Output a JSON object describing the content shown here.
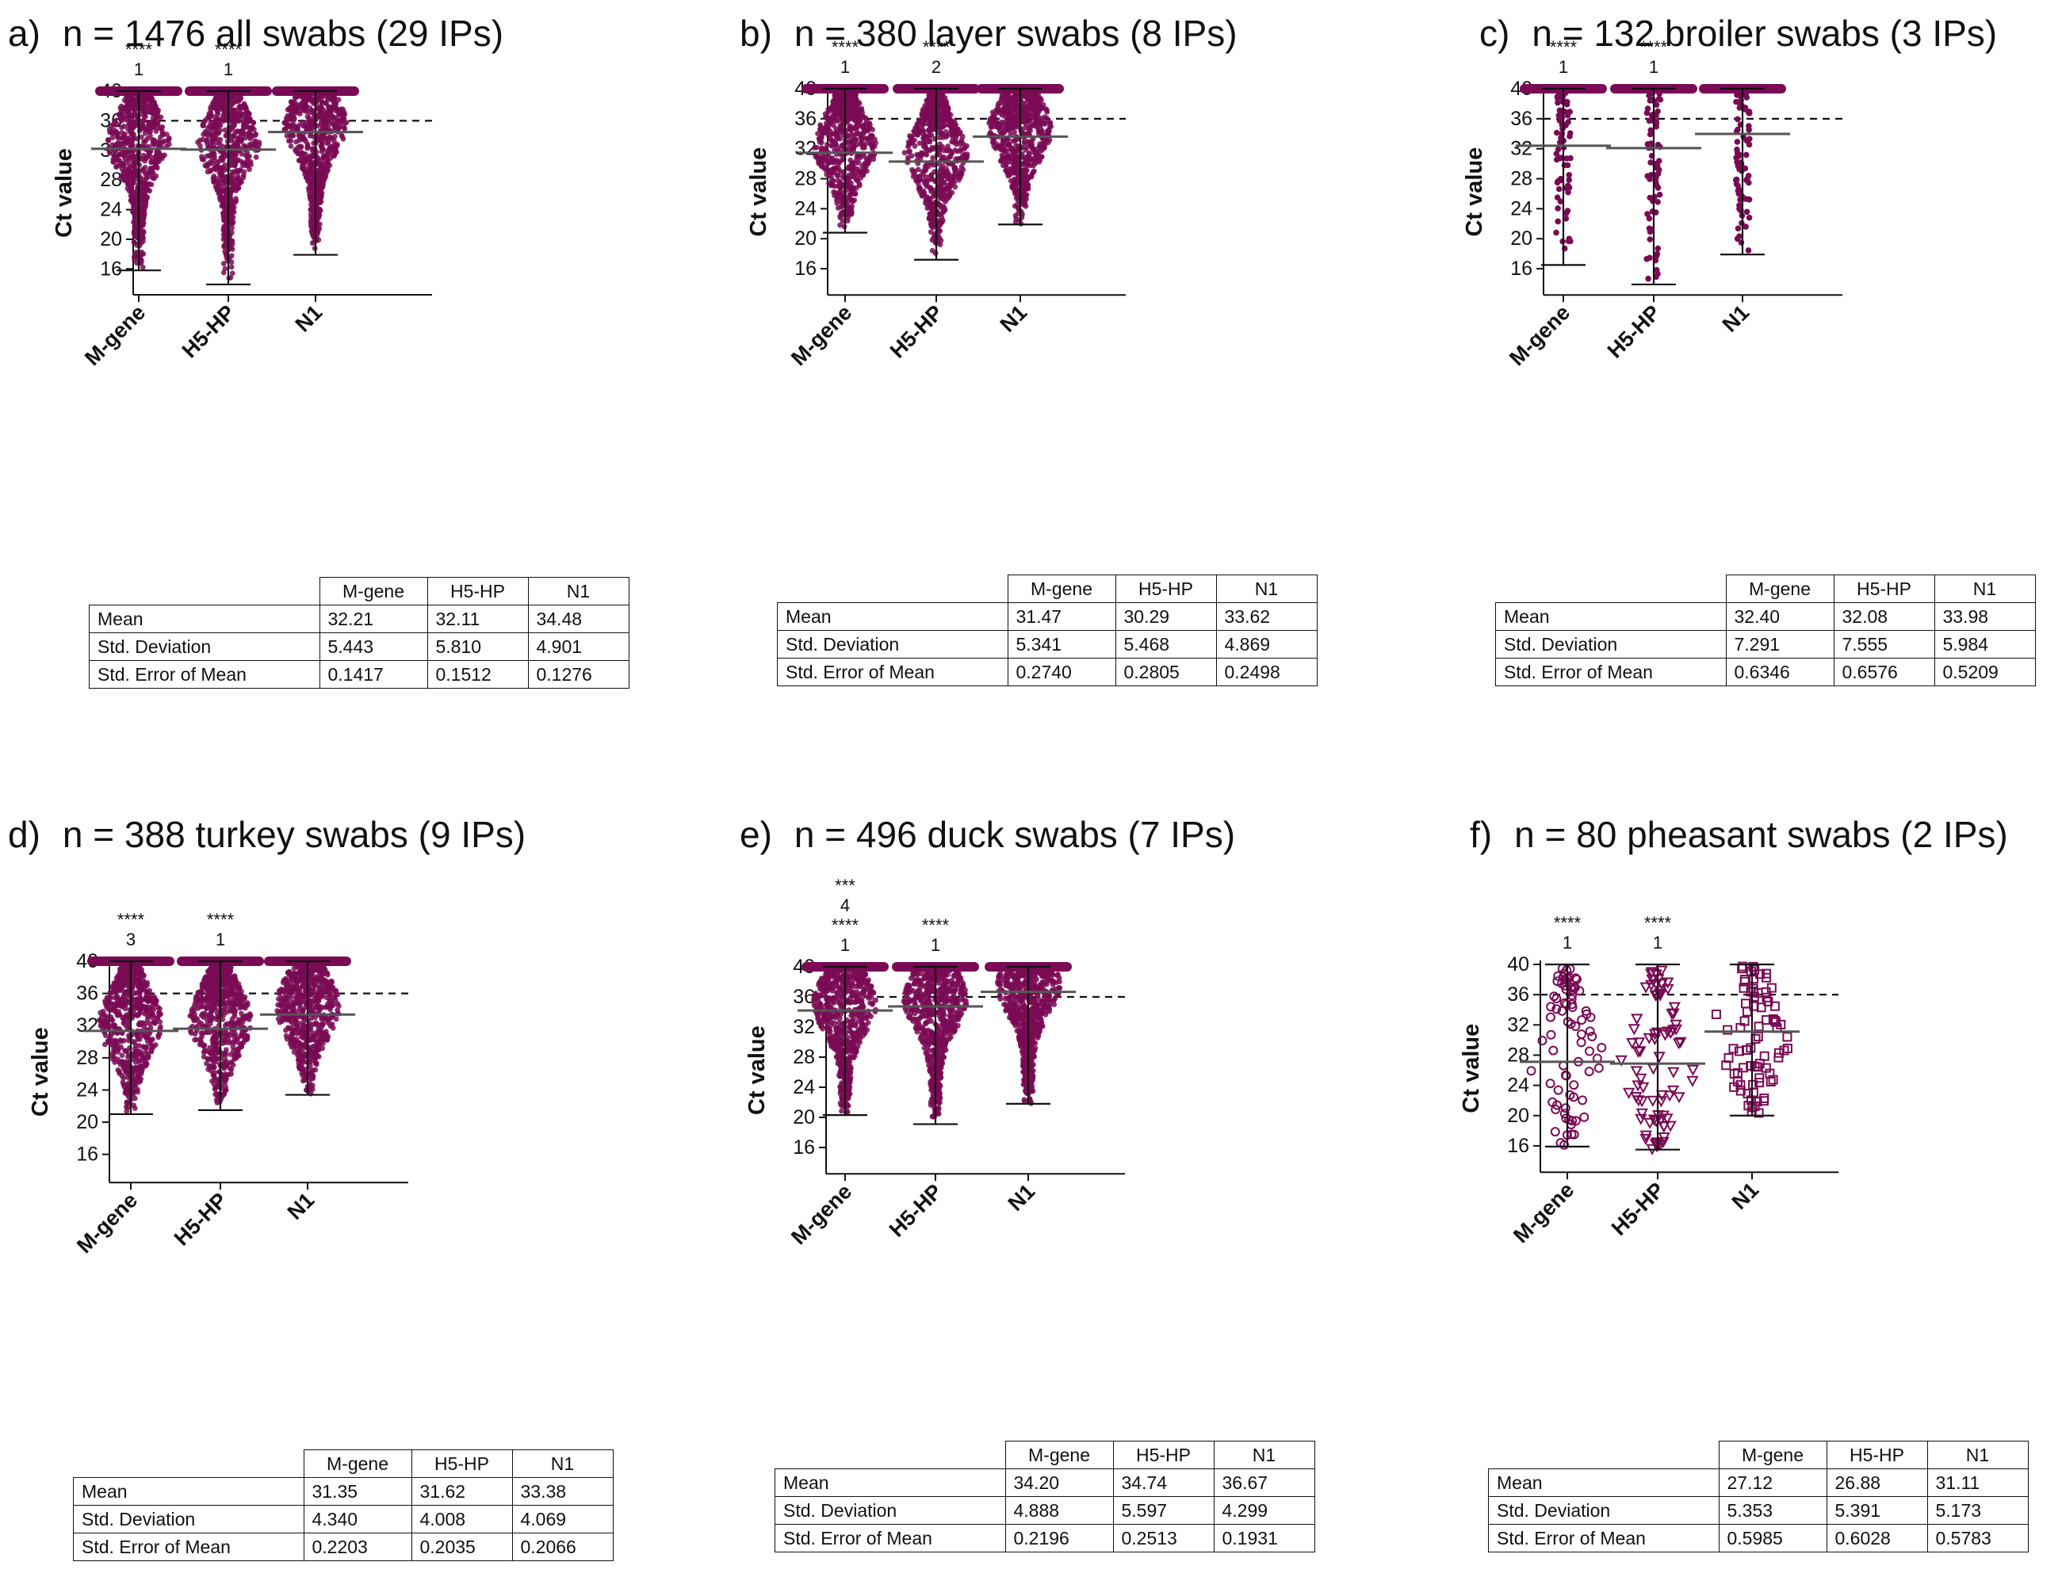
{
  "theme": {
    "point_color": "#7a0a55",
    "line_color": "#111111",
    "mean_color": "#555555"
  },
  "chart_data": [
    {
      "type": "scatter",
      "label": "a)",
      "title": "n = 1476 all swabs (29 IPs)",
      "ylabel": "Ct value",
      "categories": [
        "M-gene",
        "H5-HP",
        "N1"
      ],
      "ylim": [
        12,
        41
      ],
      "yticks": [
        16,
        20,
        24,
        28,
        32,
        36,
        40
      ],
      "threshold": 36,
      "marker": "dense",
      "series": [
        {
          "category": "M-gene",
          "mean": 32.21,
          "min": 15.8,
          "max": 40,
          "significance": [
            "****",
            "1"
          ]
        },
        {
          "category": "H5-HP",
          "mean": 32.11,
          "min": 13.9,
          "max": 40,
          "significance": [
            "****",
            "1"
          ]
        },
        {
          "category": "N1",
          "mean": 34.48,
          "min": 17.9,
          "max": 40,
          "significance": []
        }
      ],
      "table": {
        "columns": [
          "M-gene",
          "H5-HP",
          "N1"
        ],
        "rows": [
          {
            "label": "Mean",
            "values": [
              "32.21",
              "32.11",
              "34.48"
            ]
          },
          {
            "label": "Std. Deviation",
            "values": [
              "5.443",
              "5.810",
              "4.901"
            ]
          },
          {
            "label": "Std. Error of Mean",
            "values": [
              "0.1417",
              "0.1512",
              "0.1276"
            ]
          }
        ]
      }
    },
    {
      "type": "scatter",
      "label": "b)",
      "title": "n = 380 layer swabs (8 IPs)",
      "ylabel": "Ct value",
      "categories": [
        "M-gene",
        "H5-HP",
        "N1"
      ],
      "ylim": [
        12,
        41
      ],
      "yticks": [
        16,
        20,
        24,
        28,
        32,
        36,
        40
      ],
      "threshold": 36,
      "marker": "dense",
      "series": [
        {
          "category": "M-gene",
          "mean": 31.47,
          "min": 20.8,
          "max": 40,
          "significance": [
            "****",
            "1"
          ]
        },
        {
          "category": "H5-HP",
          "mean": 30.29,
          "min": 17.2,
          "max": 40,
          "significance": [
            "****",
            "2"
          ]
        },
        {
          "category": "N1",
          "mean": 33.62,
          "min": 21.9,
          "max": 40,
          "significance": []
        }
      ],
      "table": {
        "columns": [
          "M-gene",
          "H5-HP",
          "N1"
        ],
        "rows": [
          {
            "label": "Mean",
            "values": [
              "31.47",
              "30.29",
              "33.62"
            ]
          },
          {
            "label": "Std. Deviation",
            "values": [
              "5.341",
              "5.468",
              "4.869"
            ]
          },
          {
            "label": "Std. Error of Mean",
            "values": [
              "0.2740",
              "0.2805",
              "0.2498"
            ]
          }
        ]
      }
    },
    {
      "type": "scatter",
      "label": "c)",
      "title": "n = 132 broiler swabs (3 IPs)",
      "ylabel": "Ct value",
      "categories": [
        "M-gene",
        "H5-HP",
        "N1"
      ],
      "ylim": [
        12,
        41
      ],
      "yticks": [
        16,
        20,
        24,
        28,
        32,
        36,
        40
      ],
      "threshold": 36,
      "marker": "sparse",
      "series": [
        {
          "category": "M-gene",
          "mean": 32.4,
          "min": 16.5,
          "max": 40,
          "significance": [
            "****",
            "1"
          ]
        },
        {
          "category": "H5-HP",
          "mean": 32.08,
          "min": 13.9,
          "max": 40,
          "significance": [
            "****",
            "1"
          ]
        },
        {
          "category": "N1",
          "mean": 33.98,
          "min": 17.9,
          "max": 40,
          "significance": []
        }
      ],
      "table": {
        "columns": [
          "M-gene",
          "H5-HP",
          "N1"
        ],
        "rows": [
          {
            "label": "Mean",
            "values": [
              "32.40",
              "32.08",
              "33.98"
            ]
          },
          {
            "label": "Std. Deviation",
            "values": [
              "7.291",
              "7.555",
              "5.984"
            ]
          },
          {
            "label": "Std. Error of Mean",
            "values": [
              "0.6346",
              "0.6576",
              "0.5209"
            ]
          }
        ]
      }
    },
    {
      "type": "scatter",
      "label": "d)",
      "title": "n = 388 turkey swabs (9 IPs)",
      "ylabel": "Ct value",
      "categories": [
        "M-gene",
        "H5-HP",
        "N1"
      ],
      "ylim": [
        12,
        41
      ],
      "yticks": [
        16,
        20,
        24,
        28,
        32,
        36,
        40
      ],
      "threshold": 36,
      "marker": "dense",
      "series": [
        {
          "category": "M-gene",
          "mean": 31.35,
          "min": 21.0,
          "max": 40,
          "significance": [
            "****",
            "3"
          ]
        },
        {
          "category": "H5-HP",
          "mean": 31.62,
          "min": 21.5,
          "max": 40,
          "significance": [
            "****",
            "1"
          ]
        },
        {
          "category": "N1",
          "mean": 33.38,
          "min": 23.4,
          "max": 40,
          "significance": []
        }
      ],
      "table": {
        "columns": [
          "M-gene",
          "H5-HP",
          "N1"
        ],
        "rows": [
          {
            "label": "Mean",
            "values": [
              "31.35",
              "31.62",
              "33.38"
            ]
          },
          {
            "label": "Std. Deviation",
            "values": [
              "4.340",
              "4.008",
              "4.069"
            ]
          },
          {
            "label": "Std. Error of Mean",
            "values": [
              "0.2203",
              "0.2035",
              "0.2066"
            ]
          }
        ]
      }
    },
    {
      "type": "scatter",
      "label": "e)",
      "title": "n = 496 duck swabs (7 IPs)",
      "ylabel": "Ct value",
      "categories": [
        "M-gene",
        "H5-HP",
        "N1"
      ],
      "ylim": [
        12,
        41
      ],
      "yticks": [
        16,
        20,
        24,
        28,
        32,
        36,
        40
      ],
      "threshold": 36,
      "marker": "dense",
      "series": [
        {
          "category": "M-gene",
          "mean": 34.2,
          "min": 20.3,
          "max": 40,
          "significance": [
            "***",
            "4",
            "****",
            "1"
          ]
        },
        {
          "category": "H5-HP",
          "mean": 34.74,
          "min": 19.1,
          "max": 40,
          "significance": [
            "****",
            "1"
          ]
        },
        {
          "category": "N1",
          "mean": 36.67,
          "min": 21.8,
          "max": 40,
          "significance": []
        }
      ],
      "table": {
        "columns": [
          "M-gene",
          "H5-HP",
          "N1"
        ],
        "rows": [
          {
            "label": "Mean",
            "values": [
              "34.20",
              "34.74",
              "36.67"
            ]
          },
          {
            "label": "Std. Deviation",
            "values": [
              "4.888",
              "5.597",
              "4.299"
            ]
          },
          {
            "label": "Std. Error of Mean",
            "values": [
              "0.2196",
              "0.2513",
              "0.1931"
            ]
          }
        ]
      }
    },
    {
      "type": "scatter",
      "label": "f)",
      "title": "n = 80 pheasant swabs (2 IPs)",
      "ylabel": "Ct value",
      "categories": [
        "M-gene",
        "H5-HP",
        "N1"
      ],
      "ylim": [
        12,
        41
      ],
      "yticks": [
        16,
        20,
        24,
        28,
        32,
        36,
        40
      ],
      "threshold": 36,
      "marker": "open",
      "series": [
        {
          "category": "M-gene",
          "mean": 27.12,
          "min": 15.9,
          "max": 40,
          "significance": [
            "****",
            "1"
          ]
        },
        {
          "category": "H5-HP",
          "mean": 26.88,
          "min": 15.5,
          "max": 40,
          "significance": [
            "****",
            "1"
          ]
        },
        {
          "category": "N1",
          "mean": 31.11,
          "min": 20.0,
          "max": 40,
          "significance": []
        }
      ],
      "table": {
        "columns": [
          "M-gene",
          "H5-HP",
          "N1"
        ],
        "rows": [
          {
            "label": "Mean",
            "values": [
              "27.12",
              "26.88",
              "31.11"
            ]
          },
          {
            "label": "Std. Deviation",
            "values": [
              "5.353",
              "5.391",
              "5.173"
            ]
          },
          {
            "label": "Std. Error of Mean",
            "values": [
              "0.5985",
              "0.6028",
              "0.5783"
            ]
          }
        ]
      }
    }
  ]
}
